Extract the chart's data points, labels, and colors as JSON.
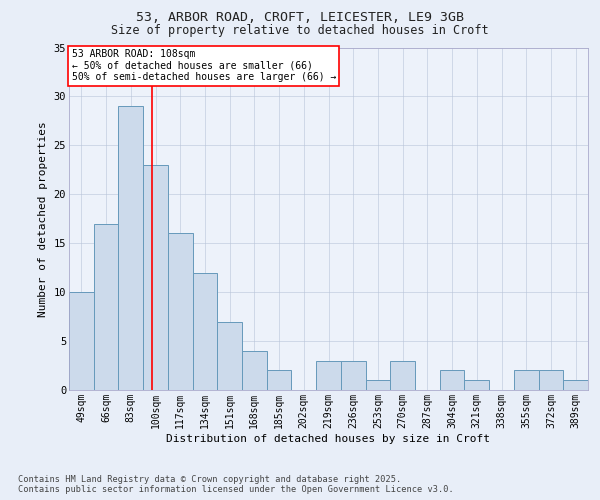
{
  "title1": "53, ARBOR ROAD, CROFT, LEICESTER, LE9 3GB",
  "title2": "Size of property relative to detached houses in Croft",
  "xlabel": "Distribution of detached houses by size in Croft",
  "ylabel": "Number of detached properties",
  "categories": [
    "49sqm",
    "66sqm",
    "83sqm",
    "100sqm",
    "117sqm",
    "134sqm",
    "151sqm",
    "168sqm",
    "185sqm",
    "202sqm",
    "219sqm",
    "236sqm",
    "253sqm",
    "270sqm",
    "287sqm",
    "304sqm",
    "321sqm",
    "338sqm",
    "355sqm",
    "372sqm",
    "389sqm"
  ],
  "values": [
    10,
    17,
    29,
    23,
    16,
    12,
    7,
    4,
    2,
    0,
    3,
    3,
    1,
    3,
    0,
    2,
    1,
    0,
    2,
    2,
    1
  ],
  "bar_color": "#ccdaeb",
  "bar_edge_color": "#6699bb",
  "ref_bar_index": 3,
  "reference_line_label": "53 ARBOR ROAD: 108sqm",
  "annotation_line1": "← 50% of detached houses are smaller (66)",
  "annotation_line2": "50% of semi-detached houses are larger (66) →",
  "ylim": [
    0,
    35
  ],
  "yticks": [
    0,
    5,
    10,
    15,
    20,
    25,
    30,
    35
  ],
  "bg_color": "#e8eef8",
  "plot_bg_color": "#edf2fa",
  "footer1": "Contains HM Land Registry data © Crown copyright and database right 2025.",
  "footer2": "Contains public sector information licensed under the Open Government Licence v3.0."
}
